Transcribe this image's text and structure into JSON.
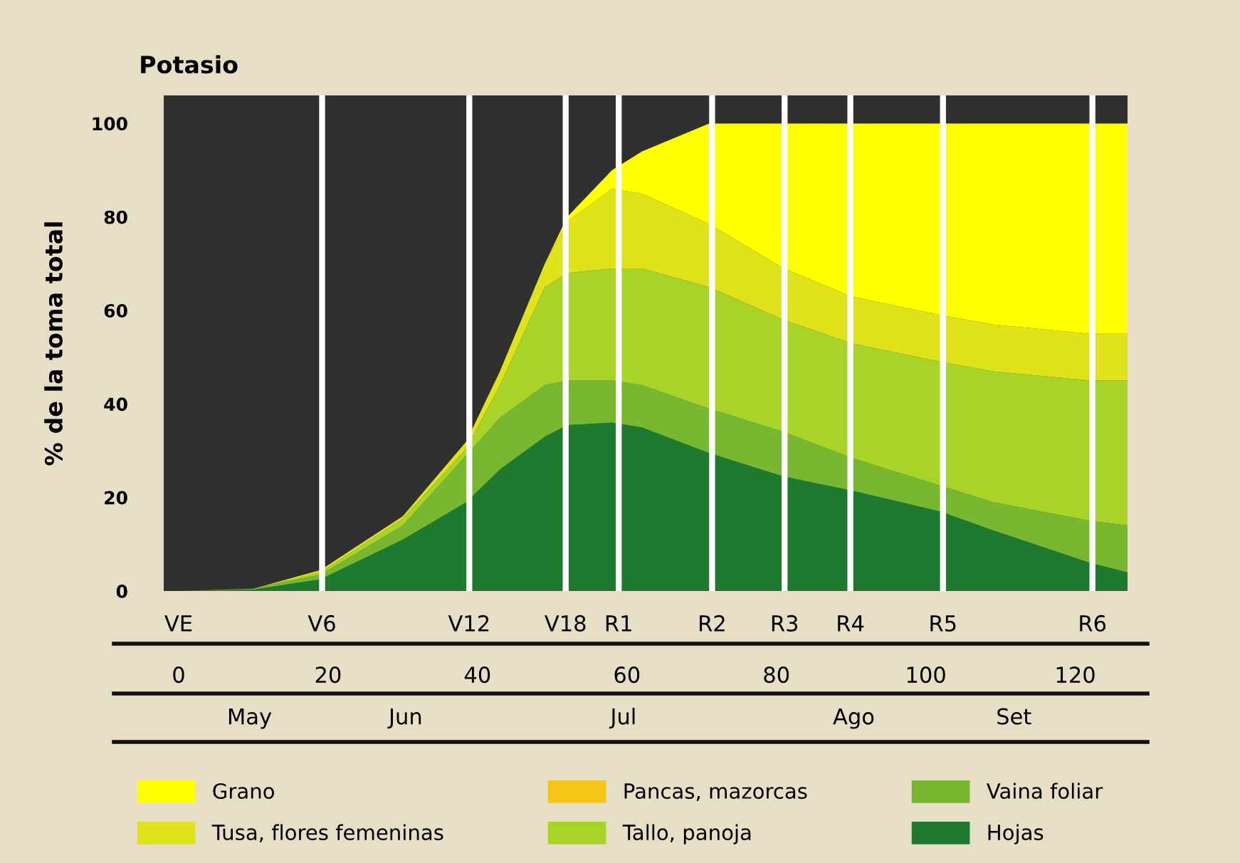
{
  "chart_data": {
    "type": "area",
    "stacked": true,
    "title": "Potasio",
    "ylabel": "% de la toma total",
    "x": [
      0,
      10,
      19,
      30,
      38.5,
      43,
      49,
      52,
      58,
      62,
      71,
      81,
      90,
      102,
      109,
      122,
      127
    ],
    "series": [
      {
        "name": "Hojas",
        "color": "#1e7a2e",
        "values": [
          0,
          0.3,
          2.5,
          11,
          19,
          26,
          33,
          35.5,
          36,
          35,
          29.5,
          24.5,
          21.5,
          17,
          13,
          6,
          4
        ]
      },
      {
        "name": "Vaina foliar",
        "color": "#78b830",
        "values": [
          0,
          0.2,
          1,
          3,
          10,
          11,
          11,
          9.5,
          9,
          9,
          9.5,
          9.5,
          7,
          5.5,
          6,
          9,
          10
        ]
      },
      {
        "name": "Tallo, panoja",
        "color": "#a8d42a",
        "values": [
          0,
          0,
          0.5,
          1.5,
          1.5,
          7,
          21,
          23,
          24,
          25,
          26,
          24,
          24.5,
          26.5,
          28,
          30,
          31
        ]
      },
      {
        "name": "Tusa, flores femeninas",
        "color": "#e0e21c",
        "values": [
          0,
          0,
          0.5,
          0.5,
          1.5,
          3,
          5,
          11,
          17,
          16,
          13.5,
          11,
          10,
          10,
          10,
          10,
          10
        ]
      },
      {
        "name": "Pancas, mazorcas",
        "color": "#f5c518",
        "values": [
          null,
          null,
          null,
          null,
          null,
          null,
          null,
          null,
          null,
          null,
          null,
          null,
          null,
          null,
          null,
          null,
          null
        ]
      },
      {
        "name": "Grano",
        "color": "#ffff00",
        "values": [
          0,
          0,
          0,
          0,
          0,
          0,
          0,
          1,
          4,
          9,
          21.5,
          31,
          37,
          41,
          43,
          45,
          45
        ]
      }
    ],
    "xlim": [
      -2,
      127
    ],
    "xticks": [
      0,
      20,
      40,
      60,
      80,
      100,
      120
    ],
    "ylim": [
      0,
      106
    ],
    "yticks": [
      0,
      20,
      40,
      60,
      80,
      100
    ],
    "annotations": [
      {
        "text": "VE",
        "x": 0,
        "y": 0
      },
      "May",
      "Jun",
      "Jul",
      "Ago",
      "Set"
    ],
    "ref_lines": [
      {
        "axis": "x",
        "value": 19.2,
        "label": "V6",
        "color": "#ffffff"
      },
      {
        "axis": "x",
        "value": 38.9,
        "label": "V12",
        "color": "#ffffff"
      },
      {
        "axis": "x",
        "value": 51.8,
        "label": "V18",
        "color": "#ffffff"
      },
      {
        "axis": "x",
        "value": 58.9,
        "label": "R1",
        "color": "#ffffff"
      },
      {
        "axis": "x",
        "value": 71.4,
        "label": "R2",
        "color": "#ffffff"
      },
      {
        "axis": "x",
        "value": 81.1,
        "label": "R3",
        "color": "#ffffff"
      },
      {
        "axis": "x",
        "value": 89.9,
        "label": "R4",
        "color": "#ffffff"
      },
      {
        "axis": "x",
        "value": 102.3,
        "label": "R5",
        "color": "#ffffff"
      },
      {
        "axis": "x",
        "value": 122.3,
        "label": "R6",
        "color": "#ffffff"
      }
    ],
    "grid": false,
    "legend": "bottom"
  }
}
